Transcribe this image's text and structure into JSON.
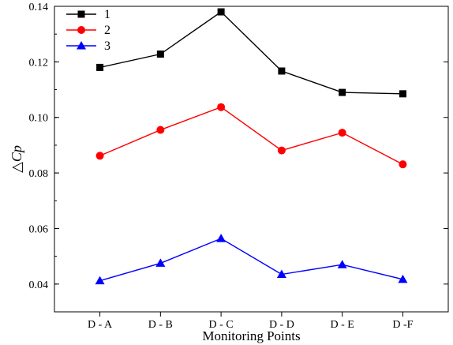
{
  "chart_data": {
    "type": "line",
    "categories": [
      "D - A",
      "D - B",
      "D - C",
      "D - D",
      "D - E",
      "D -F"
    ],
    "xlabel": "Monitoring Points",
    "ylabel": "△Cp",
    "ylim": [
      0.03,
      0.14
    ],
    "yticks": [
      0.04,
      0.06,
      0.08,
      0.1,
      0.12,
      0.14
    ],
    "ytick_labels": [
      "0.04",
      "0.06",
      "0.08",
      "0.10",
      "0.12",
      "0.14"
    ],
    "grid": false,
    "legend_position": "top-left",
    "series": [
      {
        "name": "1",
        "color": "#000000",
        "marker": "square",
        "values": [
          0.118,
          0.1228,
          0.138,
          0.1167,
          0.109,
          0.1085
        ]
      },
      {
        "name": "2",
        "color": "#ff0000",
        "marker": "circle",
        "values": [
          0.0862,
          0.0955,
          0.1037,
          0.0881,
          0.0945,
          0.0831
        ]
      },
      {
        "name": "3",
        "color": "#0000ff",
        "marker": "triangle",
        "values": [
          0.0412,
          0.0475,
          0.0564,
          0.0435,
          0.047,
          0.0417
        ]
      }
    ]
  }
}
